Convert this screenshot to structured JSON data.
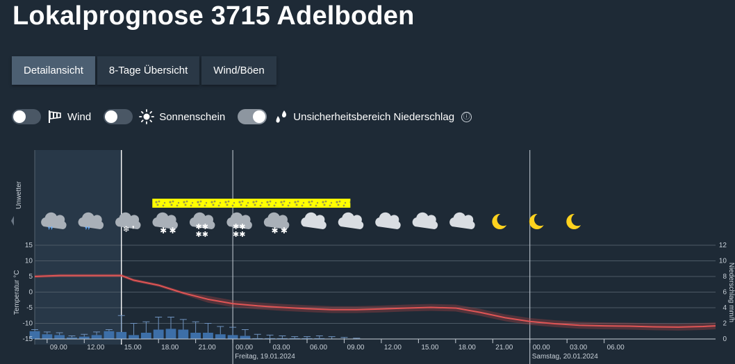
{
  "page_title": "Lokalprognose 3715 Adelboden",
  "tabs": [
    {
      "label": "Detailansicht",
      "active": true
    },
    {
      "label": "8-Tage Übersicht",
      "active": false
    },
    {
      "label": "Wind/Böen",
      "active": false
    }
  ],
  "toggles": [
    {
      "label": "Wind",
      "on": false,
      "icon": "windsock-icon"
    },
    {
      "label": "Sonnenschein",
      "on": false,
      "icon": "sun-icon"
    },
    {
      "label": "Unsicherheitsbereich Niederschlag",
      "on": true,
      "icon": "raindrops-icon"
    }
  ],
  "info_symbol": "ⓘ",
  "colors": {
    "background": "#1e2a36",
    "temperature_line": "#e05555",
    "precip_bars": "#3d6fa8",
    "warning_band": "#ffff00",
    "moon": "#ffd21e"
  },
  "chart_data": {
    "type": "line",
    "left_axis_label": "Temperatur °C",
    "right_axis_label": "Niederschlag mm/h",
    "warnings_row_label": "Unwetter",
    "temperature_ticks": [
      15,
      10,
      5,
      0,
      -5,
      -10,
      -15
    ],
    "precip_ticks": [
      12,
      10,
      8,
      6,
      4,
      2,
      0
    ],
    "ylim_temperature": [
      -15,
      15
    ],
    "ylim_precip": [
      0,
      12
    ],
    "time_labels": [
      "09.00",
      "12.00",
      "15.00",
      "18.00",
      "21.00",
      "00.00",
      "03.00",
      "06.00",
      "09.00",
      "12.00",
      "15.00",
      "18.00",
      "21.00",
      "00.00",
      "03.00",
      "06.00"
    ],
    "day_labels": [
      {
        "label": "Freitag, 19.01.2024",
        "at_hour": 24
      },
      {
        "label": "Samstag, 20.01.2024",
        "at_hour": 48
      }
    ],
    "x_hours_start": 8,
    "x_hours_end": 63,
    "now_hour": 15,
    "warning": {
      "start_hour": 17.5,
      "end_hour": 33.5,
      "type": "snow"
    },
    "temperature": {
      "name": "Temperatur",
      "hours": [
        8,
        10,
        12,
        14,
        15,
        16,
        18,
        20,
        22,
        24,
        26,
        28,
        30,
        32,
        34,
        36,
        38,
        40,
        42,
        44,
        46,
        48,
        50,
        52,
        54,
        56,
        58,
        60,
        62,
        63
      ],
      "values": [
        5,
        5.3,
        5.3,
        5.3,
        5.3,
        3.8,
        2.2,
        -0.3,
        -2.3,
        -3.7,
        -4.4,
        -4.9,
        -5.3,
        -5.6,
        -5.6,
        -5.4,
        -5.1,
        -4.9,
        -5.1,
        -6.5,
        -8.2,
        -9.4,
        -10.1,
        -10.6,
        -10.8,
        -10.9,
        -11.1,
        -11.2,
        -11.0,
        -10.8
      ],
      "uncertainty": 0.5
    },
    "precipitation": {
      "name": "Niederschlag",
      "hours": [
        8,
        9,
        10,
        11,
        12,
        13,
        14,
        15,
        16,
        17,
        18,
        19,
        20,
        21,
        22,
        23,
        24,
        25,
        26,
        27,
        28,
        29,
        30,
        31,
        32,
        33,
        34
      ],
      "values": [
        1.0,
        0.6,
        0.5,
        0.2,
        0.3,
        0.5,
        1.0,
        0.9,
        0.5,
        0.8,
        1.2,
        1.3,
        1.2,
        0.8,
        0.8,
        0.6,
        0.5,
        0.4,
        0.1,
        0.1,
        0.1,
        0.1,
        0.1,
        0.1,
        0.05,
        0.05,
        0.05
      ],
      "upper": [
        1.2,
        0.9,
        0.8,
        0.4,
        0.6,
        0.9,
        1.2,
        3.0,
        2.0,
        2.2,
        2.8,
        2.8,
        2.5,
        2.2,
        2.0,
        1.6,
        1.5,
        1.2,
        0.6,
        0.5,
        0.4,
        0.3,
        0.3,
        0.4,
        0.3,
        0.2,
        0.1
      ]
    },
    "symbols": [
      {
        "hour": 9.5,
        "icon": "rain-cloud-icon"
      },
      {
        "hour": 12.5,
        "icon": "rain-cloud-icon"
      },
      {
        "hour": 15.5,
        "icon": "sleet-cloud-icon"
      },
      {
        "hour": 18.5,
        "icon": "snow-cloud-icon"
      },
      {
        "hour": 21.5,
        "icon": "heavy-snow-cloud-icon"
      },
      {
        "hour": 24.5,
        "icon": "heavy-snow-cloud-icon"
      },
      {
        "hour": 27.5,
        "icon": "snow-cloud-icon"
      },
      {
        "hour": 30.5,
        "icon": "cloud-icon"
      },
      {
        "hour": 33.5,
        "icon": "cloud-icon"
      },
      {
        "hour": 36.5,
        "icon": "cloud-icon"
      },
      {
        "hour": 39.5,
        "icon": "cloud-icon"
      },
      {
        "hour": 42.5,
        "icon": "cloud-icon"
      },
      {
        "hour": 45.5,
        "icon": "moon-icon"
      },
      {
        "hour": 48.5,
        "icon": "moon-icon"
      },
      {
        "hour": 51.5,
        "icon": "moon-icon"
      }
    ]
  }
}
